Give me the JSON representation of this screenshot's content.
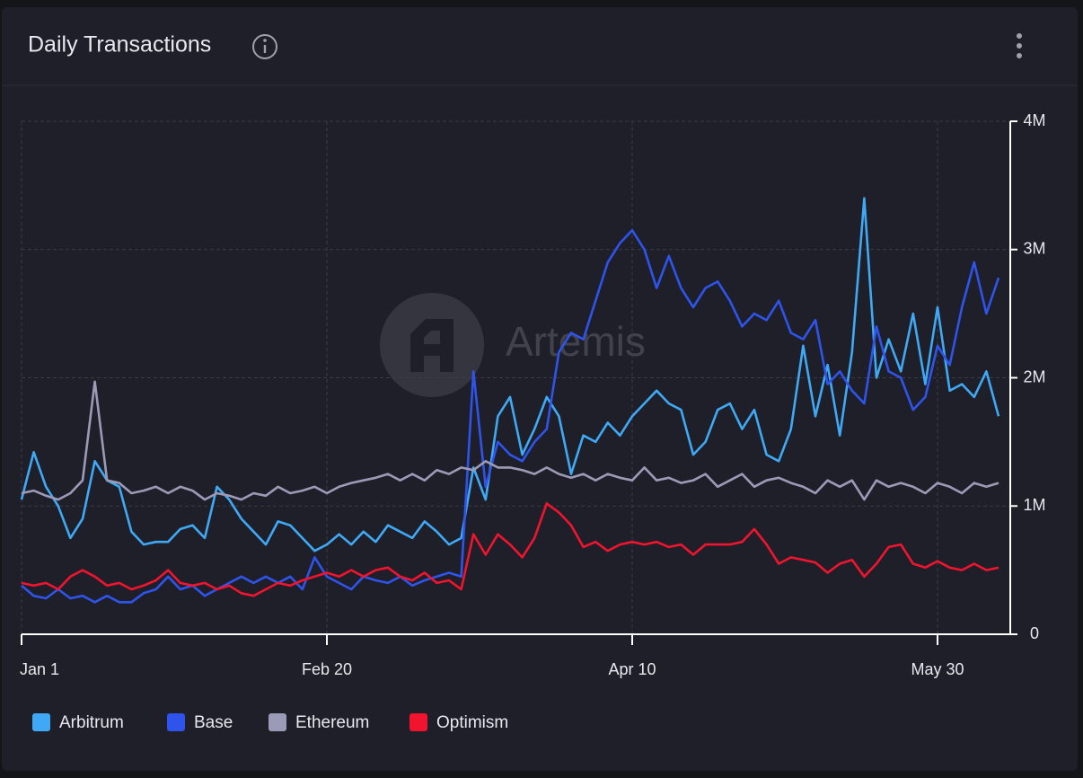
{
  "chart_data": {
    "type": "line",
    "title": "Daily Transactions",
    "watermark": "Artemis",
    "categories": [
      "Jan 1",
      null,
      null,
      null,
      null,
      null,
      null,
      null,
      null,
      null,
      null,
      null,
      null,
      null,
      null,
      null,
      null,
      null,
      null,
      null,
      null,
      null,
      null,
      null,
      null,
      "Feb 20",
      null,
      null,
      null,
      null,
      null,
      null,
      null,
      null,
      null,
      null,
      null,
      null,
      null,
      null,
      null,
      null,
      null,
      null,
      null,
      null,
      null,
      null,
      null,
      null,
      "Apr 10",
      null,
      null,
      null,
      null,
      null,
      null,
      null,
      null,
      null,
      null,
      null,
      null,
      null,
      null,
      null,
      null,
      null,
      null,
      null,
      null,
      null,
      null,
      null,
      null,
      "May 30",
      null,
      null,
      null,
      null,
      null
    ],
    "ylim": [
      0,
      4000000
    ],
    "yticks": [
      0,
      {
        "value": 1000000,
        "label": "1M"
      },
      {
        "value": 2000000,
        "label": "2M"
      },
      {
        "value": 3000000,
        "label": "3M"
      },
      {
        "value": 4000000,
        "label": "4M"
      }
    ],
    "grid": true,
    "series": [
      {
        "name": "Arbitrum",
        "color": "#3fa9f5",
        "values": [
          1050000,
          1420000,
          1150000,
          1000000,
          750000,
          900000,
          1350000,
          1200000,
          1150000,
          800000,
          700000,
          720000,
          720000,
          820000,
          850000,
          750000,
          1150000,
          1050000,
          900000,
          800000,
          700000,
          880000,
          850000,
          750000,
          650000,
          700000,
          780000,
          700000,
          800000,
          720000,
          850000,
          800000,
          750000,
          880000,
          800000,
          700000,
          750000,
          1300000,
          1050000,
          1700000,
          1850000,
          1400000,
          1600000,
          1850000,
          1700000,
          1250000,
          1550000,
          1500000,
          1650000,
          1550000,
          1700000,
          1800000,
          1900000,
          1800000,
          1750000,
          1400000,
          1500000,
          1750000,
          1800000,
          1600000,
          1750000,
          1400000,
          1350000,
          1600000,
          2250000,
          1700000,
          2100000,
          1550000,
          2200000,
          3400000,
          2000000,
          2300000,
          2050000,
          2500000,
          1950000,
          2550000,
          1900000,
          1950000,
          1850000,
          2050000,
          1700000
        ]
      },
      {
        "name": "Base",
        "color": "#2f54eb",
        "values": [
          380000,
          300000,
          280000,
          350000,
          280000,
          300000,
          250000,
          300000,
          250000,
          250000,
          320000,
          350000,
          450000,
          350000,
          380000,
          300000,
          350000,
          400000,
          450000,
          400000,
          450000,
          400000,
          450000,
          350000,
          600000,
          450000,
          400000,
          350000,
          450000,
          420000,
          400000,
          450000,
          380000,
          420000,
          450000,
          480000,
          450000,
          2050000,
          1150000,
          1500000,
          1400000,
          1350000,
          1500000,
          1600000,
          2200000,
          2350000,
          2300000,
          2600000,
          2900000,
          3050000,
          3150000,
          3000000,
          2700000,
          2950000,
          2700000,
          2550000,
          2700000,
          2750000,
          2600000,
          2400000,
          2500000,
          2450000,
          2600000,
          2350000,
          2300000,
          2450000,
          1950000,
          2050000,
          1900000,
          1800000,
          2400000,
          2050000,
          2000000,
          1750000,
          1850000,
          2250000,
          2100000,
          2550000,
          2900000,
          2500000,
          2780000
        ]
      },
      {
        "name": "Ethereum",
        "color": "#9b9bb8",
        "values": [
          1100000,
          1120000,
          1080000,
          1050000,
          1100000,
          1200000,
          1970000,
          1200000,
          1180000,
          1100000,
          1120000,
          1150000,
          1100000,
          1150000,
          1120000,
          1050000,
          1100000,
          1080000,
          1050000,
          1100000,
          1080000,
          1150000,
          1100000,
          1120000,
          1150000,
          1100000,
          1150000,
          1180000,
          1200000,
          1220000,
          1250000,
          1200000,
          1250000,
          1200000,
          1280000,
          1250000,
          1300000,
          1280000,
          1350000,
          1300000,
          1300000,
          1280000,
          1250000,
          1300000,
          1250000,
          1220000,
          1250000,
          1200000,
          1250000,
          1220000,
          1200000,
          1300000,
          1200000,
          1220000,
          1180000,
          1200000,
          1250000,
          1150000,
          1200000,
          1250000,
          1150000,
          1200000,
          1220000,
          1180000,
          1150000,
          1100000,
          1200000,
          1150000,
          1200000,
          1050000,
          1200000,
          1150000,
          1180000,
          1150000,
          1100000,
          1180000,
          1150000,
          1100000,
          1180000,
          1150000,
          1180000
        ]
      },
      {
        "name": "Optimism",
        "color": "#f0142f",
        "values": [
          400000,
          380000,
          400000,
          350000,
          450000,
          500000,
          450000,
          380000,
          400000,
          350000,
          380000,
          420000,
          500000,
          400000,
          380000,
          400000,
          350000,
          380000,
          320000,
          300000,
          350000,
          400000,
          380000,
          420000,
          450000,
          480000,
          450000,
          500000,
          450000,
          500000,
          520000,
          450000,
          420000,
          480000,
          400000,
          420000,
          350000,
          780000,
          620000,
          780000,
          700000,
          600000,
          750000,
          1020000,
          950000,
          850000,
          680000,
          720000,
          650000,
          700000,
          720000,
          700000,
          720000,
          680000,
          700000,
          620000,
          700000,
          700000,
          700000,
          720000,
          820000,
          700000,
          550000,
          600000,
          580000,
          560000,
          480000,
          550000,
          580000,
          450000,
          550000,
          680000,
          700000,
          550000,
          520000,
          570000,
          520000,
          500000,
          550000,
          500000,
          520000
        ]
      }
    ]
  }
}
